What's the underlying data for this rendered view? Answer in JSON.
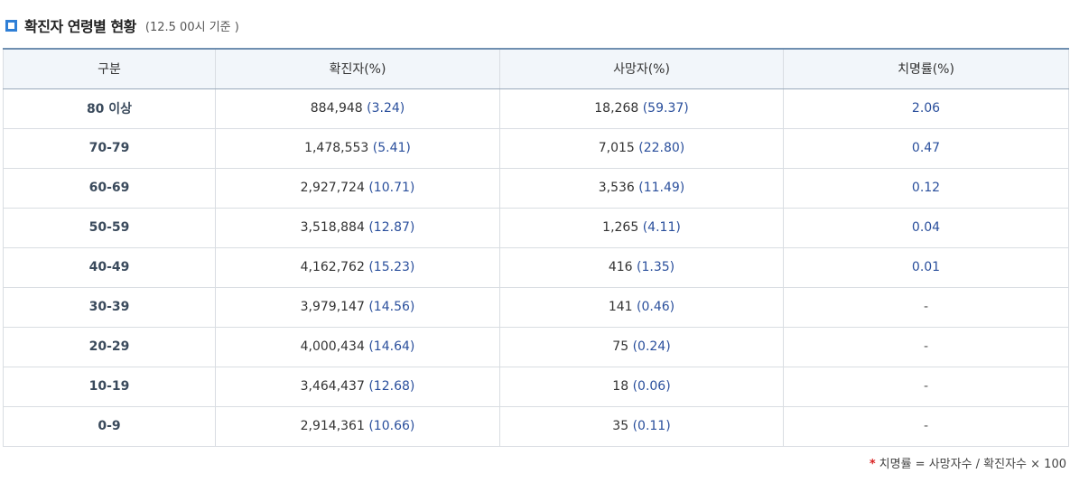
{
  "header": {
    "title": "확진자 연령별 현황",
    "subtitle": "(12.5 00시 기준 )",
    "bullet_color": "#2f7fd6"
  },
  "table": {
    "columns": [
      "구분",
      "확진자(%)",
      "사망자(%)",
      "치명률(%)"
    ],
    "rows": [
      {
        "age": "80 이상",
        "cases": "884,948",
        "cases_pct": "(3.24)",
        "deaths": "18,268",
        "deaths_pct": "(59.37)",
        "fatality": "2.06"
      },
      {
        "age": "70-79",
        "cases": "1,478,553",
        "cases_pct": "(5.41)",
        "deaths": "7,015",
        "deaths_pct": "(22.80)",
        "fatality": "0.47"
      },
      {
        "age": "60-69",
        "cases": "2,927,724",
        "cases_pct": "(10.71)",
        "deaths": "3,536",
        "deaths_pct": "(11.49)",
        "fatality": "0.12"
      },
      {
        "age": "50-59",
        "cases": "3,518,884",
        "cases_pct": "(12.87)",
        "deaths": "1,265",
        "deaths_pct": "(4.11)",
        "fatality": "0.04"
      },
      {
        "age": "40-49",
        "cases": "4,162,762",
        "cases_pct": "(15.23)",
        "deaths": "416",
        "deaths_pct": "(1.35)",
        "fatality": "0.01"
      },
      {
        "age": "30-39",
        "cases": "3,979,147",
        "cases_pct": "(14.56)",
        "deaths": "141",
        "deaths_pct": "(0.46)",
        "fatality": "-"
      },
      {
        "age": "20-29",
        "cases": "4,000,434",
        "cases_pct": "(14.64)",
        "deaths": "75",
        "deaths_pct": "(0.24)",
        "fatality": "-"
      },
      {
        "age": "10-19",
        "cases": "3,464,437",
        "cases_pct": "(12.68)",
        "deaths": "18",
        "deaths_pct": "(0.06)",
        "fatality": "-"
      },
      {
        "age": "0-9",
        "cases": "2,914,361",
        "cases_pct": "(10.66)",
        "deaths": "35",
        "deaths_pct": "(0.11)",
        "fatality": "-"
      }
    ]
  },
  "footnote": {
    "marker": "*",
    "text": "치명률 = 사망자수 / 확진자수 × 100",
    "marker_color": "#d81f1f"
  }
}
